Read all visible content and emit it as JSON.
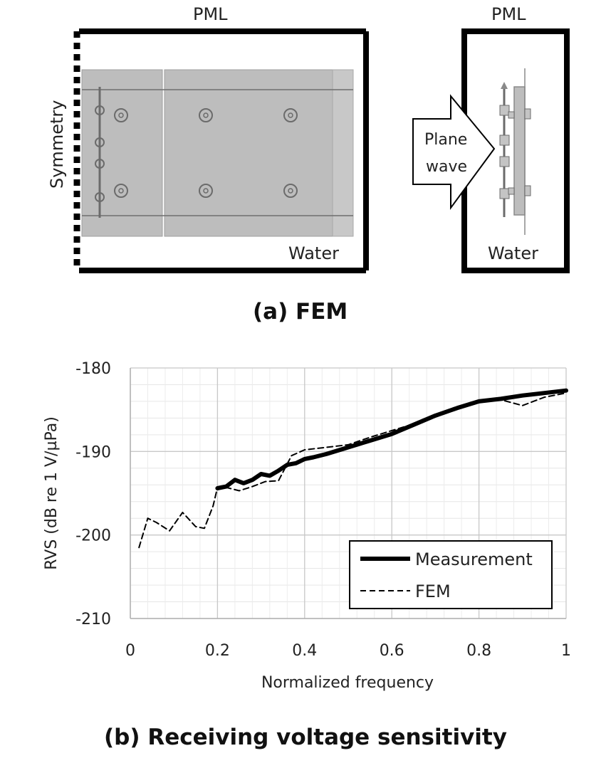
{
  "fem": {
    "left_panel": {
      "pml_label": "PML",
      "symmetry_label": "Symmetry",
      "water_label": "Water"
    },
    "right_panel": {
      "pml_label": "PML",
      "water_label": "Water",
      "wave_line1": "Plane",
      "wave_line2": "wave"
    },
    "caption": "(a) FEM"
  },
  "rvs": {
    "caption": "(b) Receiving voltage sensitivity"
  },
  "chart_data": {
    "type": "line",
    "xlabel": "Normalized frequency",
    "ylabel": "RVS (dB re 1 V/µPa)",
    "xlim": [
      0,
      1
    ],
    "ylim": [
      -210,
      -180
    ],
    "x_ticks": [
      "0",
      "0.2",
      "0.4",
      "0.6",
      "0.8",
      "1"
    ],
    "y_ticks": [
      "-180",
      "-190",
      "-200",
      "-210"
    ],
    "grid": true,
    "legend_position": "bottom-right",
    "series": [
      {
        "name": "Measurement",
        "style": "solid-thick",
        "x": [
          0.2,
          0.22,
          0.24,
          0.26,
          0.28,
          0.3,
          0.32,
          0.34,
          0.36,
          0.38,
          0.4,
          0.42,
          0.45,
          0.5,
          0.55,
          0.6,
          0.65,
          0.7,
          0.75,
          0.8,
          0.85,
          0.9,
          0.95,
          1.0
        ],
        "y": [
          -194.4,
          -194.2,
          -193.4,
          -193.8,
          -193.4,
          -192.7,
          -192.9,
          -192.3,
          -191.6,
          -191.4,
          -190.9,
          -190.7,
          -190.3,
          -189.5,
          -188.7,
          -187.9,
          -186.8,
          -185.7,
          -184.8,
          -184.0,
          -183.7,
          -183.3,
          -183.0,
          -182.7
        ]
      },
      {
        "name": "FEM",
        "style": "dashed",
        "x": [
          0.02,
          0.04,
          0.06,
          0.09,
          0.12,
          0.15,
          0.17,
          0.19,
          0.2,
          0.22,
          0.25,
          0.28,
          0.31,
          0.34,
          0.37,
          0.4,
          0.45,
          0.5,
          0.55,
          0.6,
          0.65,
          0.7,
          0.75,
          0.8,
          0.85,
          0.9,
          0.95,
          1.0
        ],
        "y": [
          -201.5,
          -198.0,
          -198.5,
          -199.5,
          -197.3,
          -199.0,
          -199.2,
          -196.5,
          -194.3,
          -194.3,
          -194.7,
          -194.2,
          -193.6,
          -193.5,
          -190.5,
          -189.8,
          -189.5,
          -189.2,
          -188.3,
          -187.5,
          -186.7,
          -185.7,
          -184.8,
          -184.0,
          -183.8,
          -184.5,
          -183.5,
          -183.0
        ]
      }
    ]
  }
}
